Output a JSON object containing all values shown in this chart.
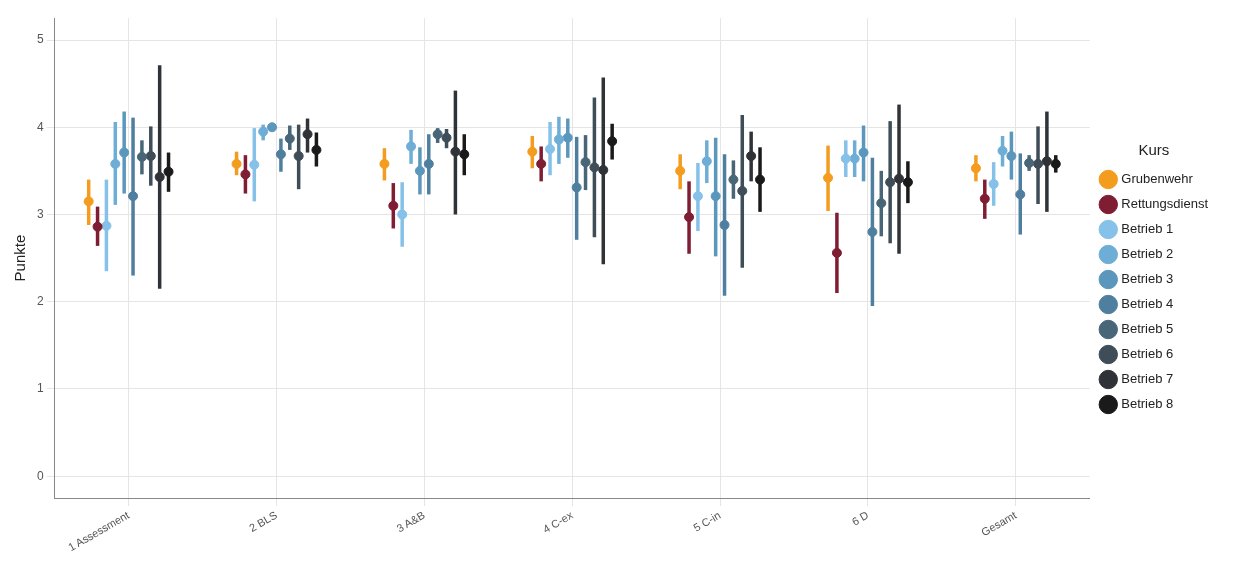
{
  "chart_data": {
    "type": "scatter",
    "ylabel": "Punkte",
    "legend_title": "Kurs",
    "legend": "right",
    "grid": true,
    "marker": "circle",
    "ylim": [
      -0.25,
      5.25
    ],
    "yticks": [
      0,
      1,
      2,
      3,
      4,
      5
    ],
    "categories": [
      "1 Assessment",
      "2 BLS",
      "3 A&B",
      "4 C-ex",
      "5 C-in",
      "6 D",
      "Gesamt"
    ],
    "series": [
      {
        "name": "Grubenwehr",
        "color": "#f39c1e",
        "values": [
          3.15,
          3.58,
          3.58,
          3.72,
          3.5,
          3.42,
          3.53
        ],
        "errors": [
          [
            2.88,
            3.4
          ],
          [
            3.45,
            3.72
          ],
          [
            3.39,
            3.76
          ],
          [
            3.53,
            3.9
          ],
          [
            3.29,
            3.69
          ],
          [
            3.04,
            3.79
          ],
          [
            3.38,
            3.68
          ]
        ]
      },
      {
        "name": "Rettungsdienst",
        "color": "#7f1d33",
        "values": [
          2.86,
          3.46,
          3.1,
          3.58,
          2.97,
          2.56,
          3.18
        ],
        "errors": [
          [
            2.64,
            3.09
          ],
          [
            3.24,
            3.68
          ],
          [
            2.84,
            3.36
          ],
          [
            3.38,
            3.78
          ],
          [
            2.55,
            3.38
          ],
          [
            2.1,
            3.02
          ],
          [
            2.95,
            3.4
          ]
        ]
      },
      {
        "name": "Betrieb 1",
        "color": "#85c1e9",
        "values": [
          2.87,
          3.57,
          3.0,
          3.75,
          3.21,
          3.64,
          3.35
        ],
        "errors": [
          [
            2.35,
            3.4
          ],
          [
            3.15,
            3.99
          ],
          [
            2.63,
            3.37
          ],
          [
            3.45,
            4.06
          ],
          [
            2.81,
            3.59
          ],
          [
            3.43,
            3.85
          ],
          [
            3.1,
            3.6
          ]
        ]
      },
      {
        "name": "Betrieb 2",
        "color": "#6eaed6",
        "values": [
          3.58,
          3.95,
          3.78,
          3.86,
          3.61,
          3.64,
          3.73
        ],
        "errors": [
          [
            3.11,
            4.06
          ],
          [
            3.85,
            4.03
          ],
          [
            3.58,
            3.97
          ],
          [
            3.58,
            4.12
          ],
          [
            3.36,
            3.85
          ],
          [
            3.43,
            3.85
          ],
          [
            3.55,
            3.9
          ]
        ]
      },
      {
        "name": "Betrieb 3",
        "color": "#5b97bd",
        "values": [
          3.71,
          4.0,
          3.5,
          3.88,
          3.21,
          3.71,
          3.67
        ],
        "errors": [
          [
            3.24,
            4.18
          ],
          null,
          [
            3.23,
            3.77
          ],
          [
            3.65,
            4.1
          ],
          [
            2.52,
            3.88
          ],
          [
            3.38,
            4.02
          ],
          [
            3.4,
            3.95
          ]
        ]
      },
      {
        "name": "Betrieb 4",
        "color": "#4f7f9e",
        "values": [
          3.21,
          3.69,
          3.58,
          3.31,
          2.88,
          2.8,
          3.23
        ],
        "errors": [
          [
            2.3,
            4.11
          ],
          [
            3.49,
            3.87
          ],
          [
            3.23,
            3.92
          ],
          [
            2.71,
            3.89
          ],
          [
            2.07,
            3.69
          ],
          [
            1.95,
            3.65
          ],
          [
            2.77,
            3.7
          ]
        ]
      },
      {
        "name": "Betrieb 5",
        "color": "#486677",
        "values": [
          3.66,
          3.87,
          3.92,
          3.6,
          3.4,
          3.13,
          3.59
        ],
        "errors": [
          [
            3.46,
            3.85
          ],
          [
            3.74,
            4.02
          ],
          [
            3.82,
            3.99
          ],
          [
            3.28,
            3.91
          ],
          [
            3.18,
            3.62
          ],
          [
            2.75,
            3.5
          ],
          [
            3.5,
            3.68
          ]
        ]
      },
      {
        "name": "Betrieb 6",
        "color": "#3e4d58",
        "values": [
          3.67,
          3.67,
          3.88,
          3.54,
          3.27,
          3.37,
          3.58
        ],
        "errors": [
          [
            3.33,
            4.01
          ],
          [
            3.29,
            4.03
          ],
          [
            3.76,
            3.98
          ],
          [
            2.74,
            4.34
          ],
          [
            2.39,
            4.14
          ],
          [
            2.67,
            4.07
          ],
          [
            3.12,
            4.01
          ]
        ]
      },
      {
        "name": "Betrieb 7",
        "color": "#2f3338",
        "values": [
          3.43,
          3.92,
          3.72,
          3.51,
          3.67,
          3.41,
          3.61
        ],
        "errors": [
          [
            2.15,
            4.71
          ],
          [
            3.71,
            4.1
          ],
          [
            3.0,
            4.42
          ],
          [
            2.43,
            4.57
          ],
          [
            3.38,
            3.95
          ],
          [
            2.55,
            4.26
          ],
          [
            3.03,
            4.18
          ]
        ]
      },
      {
        "name": "Betrieb 8",
        "color": "#1a1a1a",
        "values": [
          3.49,
          3.74,
          3.69,
          3.84,
          3.4,
          3.37,
          3.58
        ],
        "errors": [
          [
            3.26,
            3.71
          ],
          [
            3.55,
            3.94
          ],
          [
            3.45,
            3.92
          ],
          [
            3.63,
            4.04
          ],
          [
            3.03,
            3.77
          ],
          [
            3.13,
            3.61
          ],
          [
            3.48,
            3.68
          ]
        ]
      }
    ]
  }
}
